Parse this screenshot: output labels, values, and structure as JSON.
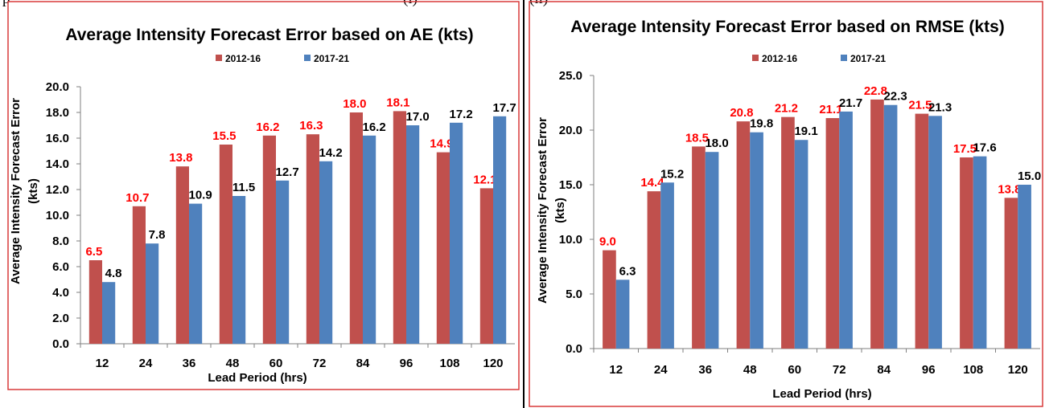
{
  "caption": {
    "left": "p",
    "mid1": "(i)",
    "mid2": "(ii)"
  },
  "colors": {
    "series_a": "#c0504d",
    "series_b": "#4f81bd",
    "label_a": "#ff0000",
    "label_b": "#000000",
    "frame": "#d93a3a",
    "divider": "#000000"
  },
  "chart_data": [
    {
      "type": "bar",
      "title": "Average Intensity Forecast Error based on AE (kts)",
      "xlabel": "Lead Period (hrs)",
      "ylabel_line1": "Average Intensity Forecast Error",
      "ylabel_line2": "(kts)",
      "categories": [
        "12",
        "24",
        "36",
        "48",
        "60",
        "72",
        "84",
        "96",
        "108",
        "120"
      ],
      "series": [
        {
          "name": "2012-16",
          "values": [
            6.5,
            10.7,
            13.8,
            15.5,
            16.2,
            16.3,
            18.0,
            18.1,
            14.9,
            12.1
          ],
          "labels": [
            "6.5",
            "10.7",
            "13.8",
            "15.5",
            "16.2",
            "16.3",
            "18.0",
            "18.1",
            "14.9",
            "12.1"
          ]
        },
        {
          "name": "2017-21",
          "values": [
            4.8,
            7.8,
            10.9,
            11.5,
            12.7,
            14.2,
            16.2,
            17.0,
            17.2,
            17.7
          ],
          "labels": [
            "4.8",
            "7.8",
            "10.9",
            "11.5",
            "12.7",
            "14.2",
            "16.2",
            "17.0",
            "17.2",
            "17.7"
          ]
        }
      ],
      "ylim": [
        0,
        20
      ],
      "yticks": [
        "0.0",
        "2.0",
        "4.0",
        "6.0",
        "8.0",
        "10.0",
        "12.0",
        "14.0",
        "16.0",
        "18.0",
        "20.0"
      ],
      "grid": false,
      "legend": "top-center"
    },
    {
      "type": "bar",
      "title": "Average Intensity Forecast Error based on RMSE (kts)",
      "xlabel": "Lead Period (hrs)",
      "ylabel_line1": "Average Intensity Forecast Error",
      "ylabel_line2": "(kts)",
      "categories": [
        "12",
        "24",
        "36",
        "48",
        "60",
        "72",
        "84",
        "96",
        "108",
        "120"
      ],
      "series": [
        {
          "name": "2012-16",
          "values": [
            9.0,
            14.4,
            18.5,
            20.8,
            21.2,
            21.1,
            22.8,
            21.5,
            17.5,
            13.8
          ],
          "labels": [
            "9.0",
            "14.4",
            "18.5",
            "20.8",
            "21.2",
            "21.1",
            "22.8",
            "21.5",
            "17.5",
            "13.8"
          ]
        },
        {
          "name": "2017-21",
          "values": [
            6.3,
            15.2,
            18.0,
            19.8,
            19.1,
            21.7,
            22.3,
            21.3,
            17.6,
            15.0
          ],
          "labels": [
            "6.3",
            "15.2",
            "18.0",
            "19.8",
            "19.1",
            "21.7",
            "22.3",
            "21.3",
            "17.6",
            "15.0"
          ]
        }
      ],
      "ylim": [
        0,
        25
      ],
      "yticks": [
        "0.0",
        "5.0",
        "10.0",
        "15.0",
        "20.0",
        "25.0"
      ],
      "grid": false,
      "legend": "top-center"
    }
  ]
}
